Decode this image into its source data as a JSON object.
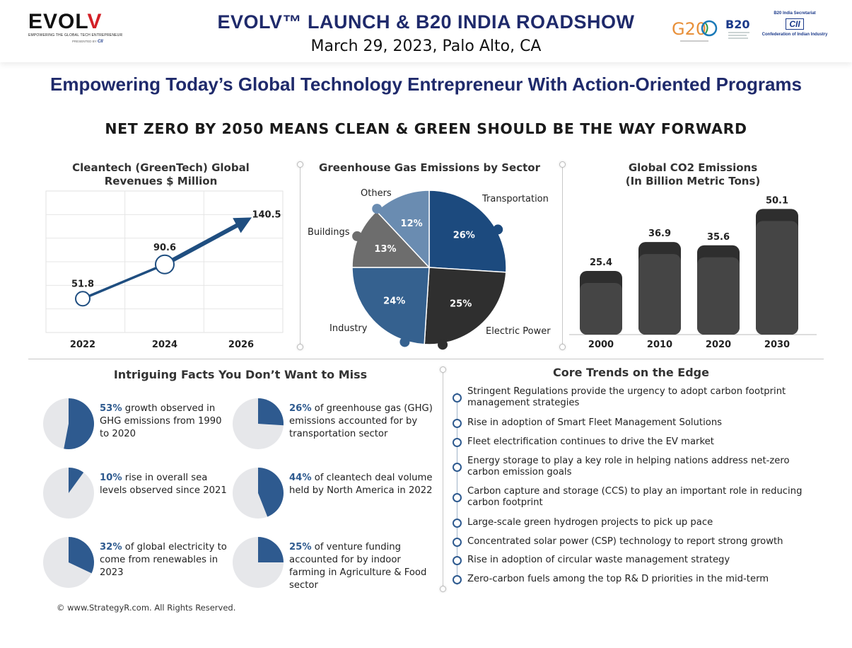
{
  "header": {
    "brand_word_main": "EVOL",
    "brand_word_accent": "V",
    "brand_tagline": "EMPOWERING THE GLOBAL TECH ENTREPRENEUR",
    "brand_presented": "PRESENTED BY",
    "brand_presented_org": "CII",
    "title": "EVOLV™ LAUNCH & B20 INDIA ROADSHOW",
    "subtitle": "March 29, 2023, Palo Alto, CA",
    "g20_text": "G20",
    "b20_text": "B20",
    "cii_secretariat": "B20 India Secretariat",
    "cii_mark": "CII",
    "cii_name": "Confederation of Indian Industry"
  },
  "tagline": "Empowering Today’s Global Technology Entrepreneur With Action-Oriented Programs",
  "headline": "NET ZERO BY 2050 MEANS CLEAN & GREEN SHOULD BE THE WAY FORWARD",
  "chart_data": [
    {
      "type": "line",
      "title_line1": "Cleantech (GreenTech) Global",
      "title_line2": "Revenues $ Million",
      "categories": [
        "2022",
        "2024",
        "2026"
      ],
      "values": [
        51.8,
        90.6,
        140.5
      ],
      "value_labels": [
        "51.8",
        "90.6",
        "140.5"
      ],
      "grid": true,
      "accent": "#1f4e80"
    },
    {
      "type": "pie",
      "title": "Greenhouse Gas Emissions by Sector",
      "slices": [
        {
          "label": "Transportation",
          "value": 26,
          "pct": "26%",
          "color": "#1c4a7e"
        },
        {
          "label": "Electric Power",
          "value": 25,
          "pct": "25%",
          "color": "#2f2f2f"
        },
        {
          "label": "Industry",
          "value": 24,
          "pct": "24%",
          "color": "#35618f"
        },
        {
          "label": "Buildings",
          "value": 13,
          "pct": "13%",
          "color": "#6d6d6d"
        },
        {
          "label": "Others",
          "value": 12,
          "pct": "12%",
          "color": "#6a8cb1"
        }
      ]
    },
    {
      "type": "bar",
      "title_line1": "Global CO2 Emissions",
      "title_line2": "(In Billion Metric Tons)",
      "categories": [
        "2000",
        "2010",
        "2020",
        "2030"
      ],
      "values": [
        25.4,
        36.9,
        35.6,
        50.1
      ],
      "value_labels": [
        "25.4",
        "36.9",
        "35.6",
        "50.1"
      ],
      "color": "#454545"
    }
  ],
  "facts": {
    "title": "Intriguing Facts You Don’t Want to Miss",
    "items": [
      {
        "pct": 53,
        "bold": "53%",
        "text": " growth observed in GHG emissions from 1990 to 2020"
      },
      {
        "pct": 26,
        "bold": "26%",
        "text": " of greenhouse gas (GHG) emissions accounted for by transportation sector"
      },
      {
        "pct": 10,
        "bold": "10%",
        "text": " rise in overall sea levels observed since 2021"
      },
      {
        "pct": 44,
        "bold": "44%",
        "text": " of cleantech deal volume held by North America in 2022"
      },
      {
        "pct": 32,
        "bold": "32%",
        "text": " of global electricity to come from renewables in 2023"
      },
      {
        "pct": 25,
        "bold": "25%",
        "text": " of venture funding accounted for by indoor farming in Agriculture & Food sector"
      }
    ]
  },
  "trends": {
    "title": "Core Trends on the Edge",
    "items": [
      "Stringent Regulations provide the urgency to adopt carbon footprint management strategies",
      "Rise in adoption of Smart Fleet Management Solutions",
      "Fleet electrification continues to drive the EV market",
      "Energy storage to play a key role in helping nations address net-zero carbon emission goals",
      "Carbon capture and storage (CCS) to play an important role in reducing carbon footprint",
      "Large-scale green hydrogen projects to pick up pace",
      "Concentrated solar power (CSP) technology to report strong growth",
      "Rise in adoption of circular waste management strategy",
      "Zero-carbon fuels among the top R& D priorities in the mid-term"
    ]
  },
  "copyright": "© www.StrategyR.com. All Rights Reserved."
}
